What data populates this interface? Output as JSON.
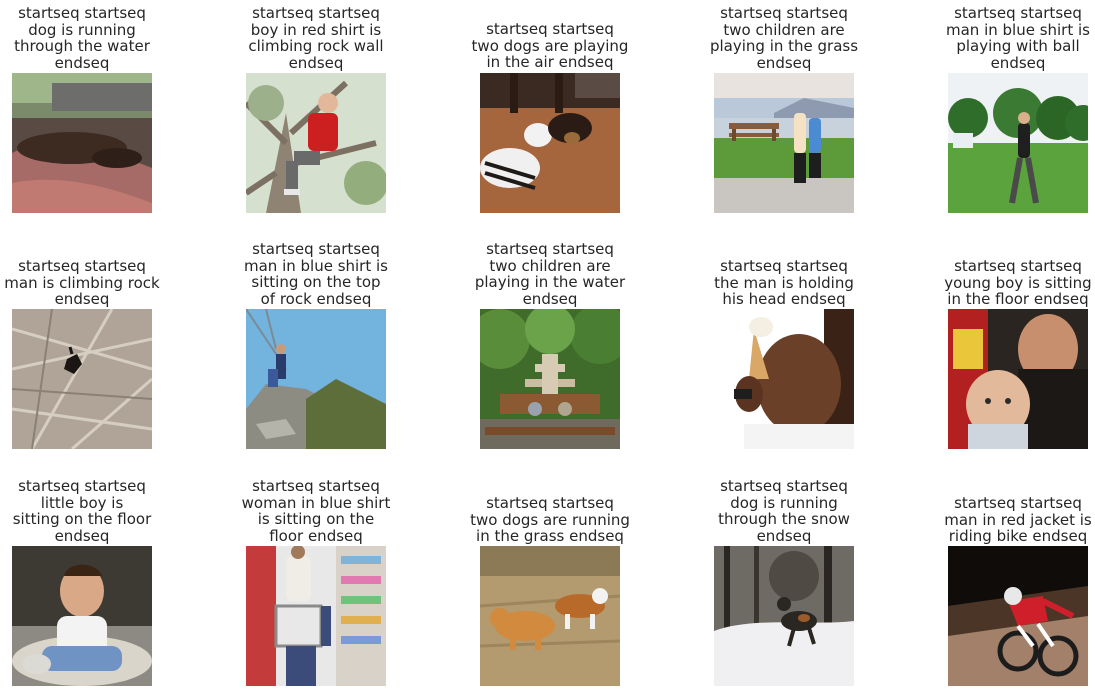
{
  "items": [
    {
      "caption": "startseq startseq\ndog is running\nthrough the water\nendseq",
      "photo_subject": "dog resting head on red cloth inside car",
      "dominant_colors": [
        "#5e4a3c",
        "#a86a63",
        "#8fae7a"
      ]
    },
    {
      "caption": "startseq startseq\nboy in red shirt is\nclimbing rock wall\nendseq",
      "photo_subject": "boy in red shirt sitting in tree",
      "dominant_colors": [
        "#c91f1f",
        "#8c8170",
        "#d8e2cf"
      ]
    },
    {
      "caption": "startseq startseq\ntwo dogs are playing\nin the air endseq",
      "photo_subject": "two dogs playing on wooden floor",
      "dominant_colors": [
        "#a0623b",
        "#2a1d16",
        "#efefef"
      ]
    },
    {
      "caption": "startseq startseq\ntwo children are\nplaying in the grass\nendseq",
      "photo_subject": "two people jogging by a lake with bench",
      "dominant_colors": [
        "#5f9a3a",
        "#a9c2d9",
        "#c9c6c1"
      ]
    },
    {
      "caption": "startseq startseq\nman in blue shirt is\nplaying with ball\nendseq",
      "photo_subject": "man standing in green park",
      "dominant_colors": [
        "#58a13b",
        "#2f6d2a",
        "#e9eef2"
      ]
    },
    {
      "caption": "startseq startseq\nman is climbing rock\nendseq",
      "photo_subject": "climber on grey rock face",
      "dominant_colors": [
        "#b4aa9e",
        "#8a7f73",
        "#1e1a17"
      ]
    },
    {
      "caption": "startseq startseq\nman in blue shirt is\nsitting on the top\nof rock endseq",
      "photo_subject": "people sitting on rocks under blue sky",
      "dominant_colors": [
        "#6fb0db",
        "#8b8a80",
        "#5b6d3a"
      ]
    },
    {
      "caption": "startseq startseq\ntwo children are\nplaying in the water\nendseq",
      "photo_subject": "fountain in a garden with people on bench",
      "dominant_colors": [
        "#3d6b2a",
        "#c7b9a2",
        "#8a5a32"
      ]
    },
    {
      "caption": "startseq startseq\nthe man is holding\nhis head endseq",
      "photo_subject": "boy eating ice cream",
      "dominant_colors": [
        "#6b4028",
        "#ffffff",
        "#2f1c12"
      ]
    },
    {
      "caption": "startseq startseq\nyoung boy is sitting\nin the floor endseq",
      "photo_subject": "man holding baby",
      "dominant_colors": [
        "#2b2623",
        "#d9b49a",
        "#b11d1d"
      ]
    },
    {
      "caption": "startseq startseq\nlittle boy is\nsitting on the floor\nendseq",
      "photo_subject": "smiling toddler sitting on bed",
      "dominant_colors": [
        "#3d3b34",
        "#e6e1d8",
        "#6f93c3"
      ]
    },
    {
      "caption": "startseq startseq\nwoman in blue shirt\nis sitting on the\nfloor endseq",
      "photo_subject": "man and child with cart in store aisle",
      "dominant_colors": [
        "#c43b3b",
        "#e6e6e6",
        "#3c4c7a"
      ]
    },
    {
      "caption": "startseq startseq\ntwo dogs are running\nin the grass endseq",
      "photo_subject": "two dogs on dry grass field",
      "dominant_colors": [
        "#b59a6e",
        "#d18a3e",
        "#8b7a55"
      ]
    },
    {
      "caption": "startseq startseq\ndog is running\nthrough the snow\nendseq",
      "photo_subject": "dog running in snowy forest",
      "dominant_colors": [
        "#f0f0f2",
        "#2a2622",
        "#6e6a64"
      ]
    },
    {
      "caption": "startseq startseq\nman in red jacket is\nriding bike endseq",
      "photo_subject": "mountain biker on dirt trail",
      "dominant_colors": [
        "#3b2a1f",
        "#c9a07a",
        "#cf1f2a"
      ]
    }
  ]
}
